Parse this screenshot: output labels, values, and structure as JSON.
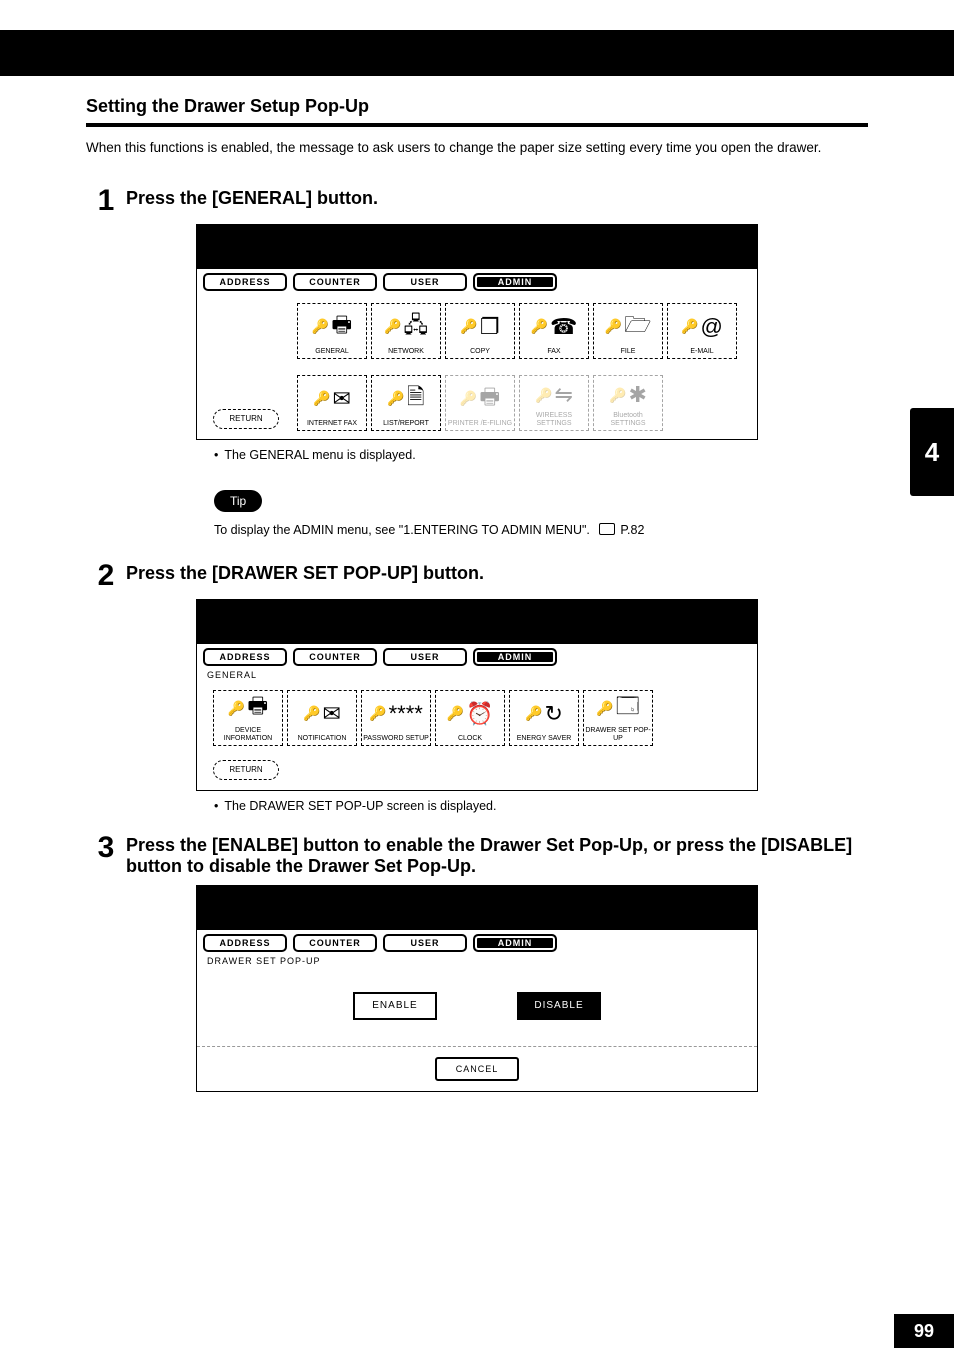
{
  "section_title": "Setting the Drawer Setup Pop-Up",
  "intro": "When this functions is enabled, the message to ask users to change the paper size setting every time you open the drawer.",
  "steps": {
    "s1": {
      "num": "1",
      "title": "Press the [GENERAL] button.",
      "note": "The GENERAL menu is displayed."
    },
    "s2": {
      "num": "2",
      "title": "Press the [DRAWER SET POP-UP] button.",
      "note": "The DRAWER SET POP-UP screen is displayed."
    },
    "s3": {
      "num": "3",
      "title": "Press the [ENALBE] button to enable the Drawer Set Pop-Up, or press the [DISABLE] button to disable the Drawer Set Pop-Up."
    }
  },
  "tip": {
    "label": "Tip",
    "text_prefix": "To display the ADMIN menu, see \"1.ENTERING TO ADMIN MENU\".",
    "page_ref": "P.82"
  },
  "tabs": {
    "address": "ADDRESS",
    "counter": "COUNTER",
    "user": "USER",
    "admin": "ADMIN"
  },
  "ui1": {
    "row1": [
      {
        "label": "GENERAL",
        "glyph": "🖶"
      },
      {
        "label": "NETWORK",
        "glyph": "🖧"
      },
      {
        "label": "COPY",
        "glyph": "❐"
      },
      {
        "label": "FAX",
        "glyph": "☎"
      },
      {
        "label": "FILE",
        "glyph": "🗁"
      },
      {
        "label": "E-MAIL",
        "glyph": "@"
      }
    ],
    "row2": [
      {
        "label": "INTERNET FAX",
        "glyph": "✉"
      },
      {
        "label": "LIST/REPORT",
        "glyph": "🗎"
      },
      {
        "label": "PRINTER /E-FILING",
        "glyph": "🖶",
        "dim": true
      },
      {
        "label": "WIRELESS SETTINGS",
        "glyph": "⇋",
        "dim": true
      },
      {
        "label": "Bluetooth SETTINGS",
        "glyph": "✱",
        "dim": true
      }
    ],
    "return": "RETURN"
  },
  "ui2": {
    "crumb": "GENERAL",
    "row": [
      {
        "label": "DEVICE INFORMATION",
        "glyph": "🖶"
      },
      {
        "label": "NOTIFICATION",
        "glyph": "✉"
      },
      {
        "label": "PASSWORD SETUP",
        "glyph": "****"
      },
      {
        "label": "CLOCK",
        "glyph": "⏰"
      },
      {
        "label": "ENERGY SAVER",
        "glyph": "↻"
      },
      {
        "label": "DRAWER SET POP-UP",
        "glyph": "🗔"
      }
    ],
    "return": "RETURN"
  },
  "ui3": {
    "crumb": "DRAWER SET POP-UP",
    "enable": "ENABLE",
    "disable": "DISABLE",
    "cancel": "CANCEL"
  },
  "side_tab": "4",
  "page_number": "99"
}
